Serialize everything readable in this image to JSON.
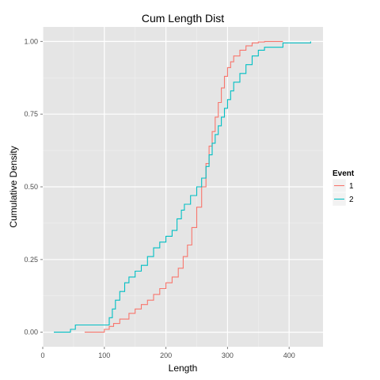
{
  "chart_data": {
    "type": "line",
    "subtype": "ecdf-step",
    "title": "Cum Length Dist",
    "xlabel": "Length",
    "ylabel": "Cumulative Density",
    "xlim": [
      0,
      455
    ],
    "ylim": [
      -0.05,
      1.05
    ],
    "x_ticks": [
      0,
      100,
      200,
      300,
      400
    ],
    "x_tick_labels": [
      "0",
      "100",
      "200",
      "300",
      "400"
    ],
    "y_ticks": [
      0,
      0.25,
      0.5,
      0.75,
      1.0
    ],
    "y_tick_labels": [
      "0.00",
      "0.25",
      "0.50",
      "0.75",
      "1.00"
    ],
    "grid": true,
    "legend": {
      "title": "Event",
      "position": "right"
    },
    "series": [
      {
        "name": "1",
        "color": "#F8766D",
        "x": [
          68,
          100,
          108,
          115,
          125,
          140,
          150,
          160,
          170,
          180,
          190,
          200,
          210,
          220,
          228,
          235,
          242,
          250,
          258,
          265,
          270,
          275,
          280,
          285,
          290,
          295,
          300,
          305,
          310,
          320,
          330,
          340,
          350,
          360,
          372,
          390
        ],
        "y": [
          0.0,
          0.01,
          0.02,
          0.03,
          0.045,
          0.065,
          0.08,
          0.095,
          0.11,
          0.13,
          0.15,
          0.17,
          0.19,
          0.22,
          0.26,
          0.3,
          0.36,
          0.43,
          0.5,
          0.58,
          0.64,
          0.69,
          0.74,
          0.79,
          0.84,
          0.88,
          0.91,
          0.93,
          0.95,
          0.97,
          0.985,
          0.995,
          0.998,
          1.0,
          1.0,
          1.0
        ]
      },
      {
        "name": "2",
        "color": "#00BFC4",
        "x": [
          18,
          45,
          53,
          60,
          100,
          108,
          113,
          118,
          125,
          133,
          140,
          150,
          160,
          170,
          180,
          190,
          200,
          210,
          218,
          225,
          230,
          240,
          250,
          258,
          265,
          270,
          275,
          280,
          285,
          290,
          295,
          300,
          305,
          310,
          320,
          330,
          340,
          350,
          360,
          390,
          435
        ],
        "y": [
          0.0,
          0.01,
          0.025,
          0.025,
          0.025,
          0.05,
          0.08,
          0.11,
          0.14,
          0.17,
          0.19,
          0.21,
          0.23,
          0.26,
          0.29,
          0.31,
          0.33,
          0.35,
          0.39,
          0.42,
          0.44,
          0.47,
          0.5,
          0.53,
          0.57,
          0.61,
          0.65,
          0.68,
          0.71,
          0.74,
          0.77,
          0.8,
          0.83,
          0.86,
          0.89,
          0.92,
          0.95,
          0.97,
          0.98,
          0.995,
          1.0
        ]
      }
    ]
  }
}
